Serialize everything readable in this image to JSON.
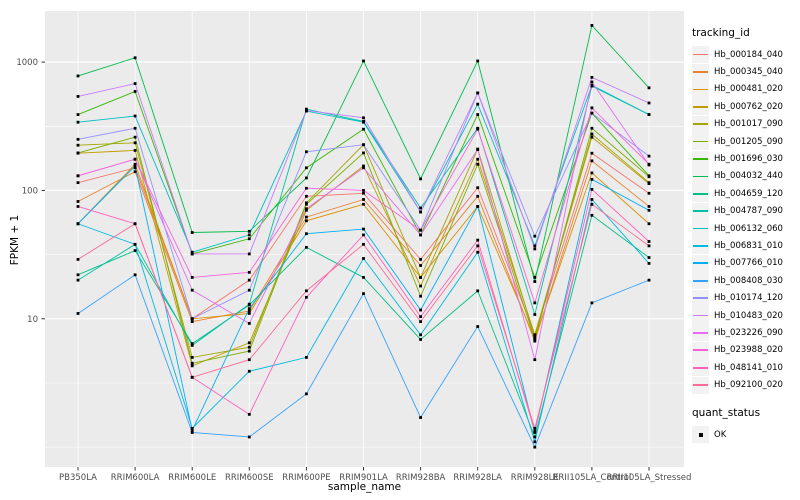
{
  "legend": {
    "tracking_title": "tracking_id",
    "quant_title": "quant_status",
    "quant_ok_label": "OK"
  },
  "colors": {
    "panel_bg": "#EBEBEB",
    "grid": "#FFFFFF",
    "tick_mark": "#333333",
    "tick_text": "#4D4D4D",
    "point": "#000000"
  },
  "chart_data": {
    "type": "line",
    "title": "",
    "xlabel": "sample_name",
    "ylabel": "FPKM + 1",
    "y_scale": "log10",
    "ylim": [
      0.7,
      2500
    ],
    "y_ticks": [
      10,
      100,
      1000
    ],
    "y_minor": [
      1,
      3.16,
      31.6,
      316
    ],
    "grid": "on",
    "legend_position": "right",
    "point_shape": "square",
    "categories": [
      "PB350LA",
      "RRIM600LA",
      "RRIM600LE",
      "RRIM600SE",
      "RRIM600PE",
      "RRIM901LA",
      "RRIM928BA",
      "RRIM928LA",
      "RRIM928LE",
      "RRII105LA_Control",
      "RRII105LA_Stressed"
    ],
    "series": [
      {
        "name": "Hb_000184_040",
        "color": "#F8766D",
        "values": [
          115,
          150,
          10,
          20,
          90,
          95,
          29,
          105,
          7.5,
          195,
          95
        ]
      },
      {
        "name": "Hb_000345_040",
        "color": "#EA8331",
        "values": [
          82,
          140,
          9.5,
          11.5,
          62,
          85,
          26,
          90,
          6.7,
          170,
          75
        ]
      },
      {
        "name": "Hb_000481_020",
        "color": "#D89000",
        "values": [
          55,
          160,
          10,
          11,
          58,
          78,
          21,
          75,
          7,
          137,
          55
        ]
      },
      {
        "name": "Hb_000762_020",
        "color": "#C09B00",
        "values": [
          195,
          205,
          4.3,
          6.5,
          70,
          155,
          18,
          175,
          7.5,
          260,
          113
        ]
      },
      {
        "name": "Hb_001017_090",
        "color": "#A3A500",
        "values": [
          225,
          235,
          5,
          6,
          80,
          227,
          21,
          210,
          7.2,
          275,
          115
        ]
      },
      {
        "name": "Hb_001205_090",
        "color": "#7CAE00",
        "values": [
          196,
          260,
          4.5,
          5.6,
          78,
          196,
          15,
          160,
          6.9,
          305,
          128
        ]
      },
      {
        "name": "Hb_001696_030",
        "color": "#39B600",
        "values": [
          390,
          590,
          32,
          42,
          150,
          300,
          45,
          390,
          21,
          400,
          130
        ]
      },
      {
        "name": "Hb_004032_440",
        "color": "#00BB4E",
        "values": [
          780,
          1080,
          47,
          48,
          125,
          1020,
          123,
          1020,
          19.5,
          1930,
          630
        ]
      },
      {
        "name": "Hb_004659_120",
        "color": "#00C087",
        "values": [
          22,
          34,
          6.4,
          12.8,
          36,
          21,
          6.9,
          16.5,
          1.2,
          64,
          30
        ]
      },
      {
        "name": "Hb_004787_090",
        "color": "#00C1A3",
        "values": [
          20,
          38,
          6.2,
          13,
          430,
          345,
          73,
          305,
          10.8,
          650,
          390
        ]
      },
      {
        "name": "Hb_006132_060",
        "color": "#00BFC4",
        "values": [
          340,
          380,
          33,
          45,
          415,
          340,
          68,
          470,
          37,
          660,
          390
        ]
      },
      {
        "name": "Hb_006831_010",
        "color": "#00BAE0",
        "values": [
          55,
          38,
          1.4,
          3.9,
          5,
          29.5,
          7.5,
          33,
          1.1,
          85,
          27
        ]
      },
      {
        "name": "Hb_007766_010",
        "color": "#00B0F6",
        "values": [
          55,
          155,
          1.35,
          12,
          46,
          50,
          11.7,
          75,
          1.3,
          122,
          70
        ]
      },
      {
        "name": "Hb_008408_030",
        "color": "#35A2FF",
        "values": [
          11,
          22,
          1.3,
          1.2,
          2.6,
          15.7,
          1.7,
          8.7,
          1.0,
          13.3,
          20
        ]
      },
      {
        "name": "Hb_010174_120",
        "color": "#9590FF",
        "values": [
          250,
          305,
          10,
          16.7,
          200,
          227,
          49,
          575,
          44,
          400,
          185
        ]
      },
      {
        "name": "Hb_010483_020",
        "color": "#C77CFF",
        "values": [
          540,
          680,
          32,
          32,
          420,
          368,
          68,
          575,
          35,
          760,
          480
        ]
      },
      {
        "name": "Hb_023226_090",
        "color": "#E76BF3",
        "values": [
          130,
          175,
          16.7,
          9.2,
          72,
          150,
          45,
          208,
          4.8,
          700,
          158
        ]
      },
      {
        "name": "Hb_023988_020",
        "color": "#FA62DB",
        "values": [
          130,
          175,
          21,
          23,
          104,
          100,
          49,
          300,
          13.3,
          440,
          160
        ]
      },
      {
        "name": "Hb_048141_010",
        "color": "#FF62BC",
        "values": [
          75,
          55,
          3.5,
          1.8,
          14.7,
          45,
          10.4,
          41,
          1.33,
          102,
          40
        ]
      },
      {
        "name": "Hb_092100_020",
        "color": "#FF6A98",
        "values": [
          29,
          55,
          3.5,
          4.8,
          16.5,
          38,
          9.5,
          37,
          1.4,
          78,
          37
        ]
      }
    ]
  }
}
